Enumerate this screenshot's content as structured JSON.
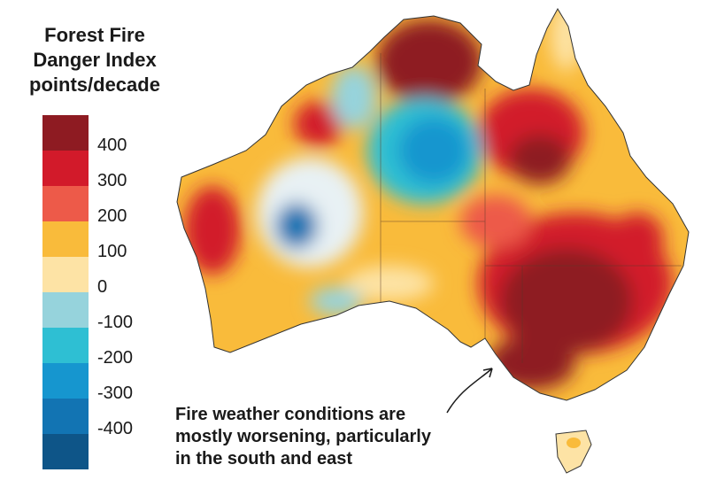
{
  "legend": {
    "title_lines": [
      "Forest Fire",
      "Danger Index",
      "points/decade"
    ],
    "bins": [
      {
        "label": "400",
        "color": "#8e1b22"
      },
      {
        "label": "300",
        "color": "#d21a2a"
      },
      {
        "label": "200",
        "color": "#ed5a49"
      },
      {
        "label": "100",
        "color": "#f9bb3b"
      },
      {
        "label": "0",
        "color": "#fde3a5"
      },
      {
        "label": "-100",
        "color": "#96d3dc"
      },
      {
        "label": "-200",
        "color": "#2ebfd3"
      },
      {
        "label": "-300",
        "color": "#1696cf"
      },
      {
        "label": "-400",
        "color": "#1274b3"
      },
      {
        "label": "",
        "color": "#0e5588"
      }
    ]
  },
  "annotation": {
    "lines": [
      "Fire weather conditions are",
      "mostly worsening, particularly",
      "in the south and east"
    ]
  },
  "map": {
    "subject": "australia",
    "regions": [
      {
        "id": "north-west-kimberley",
        "class": 400
      },
      {
        "id": "arnhem-land",
        "class": 400
      },
      {
        "id": "top-end-west",
        "class": 100
      },
      {
        "id": "central-north",
        "class": -300
      },
      {
        "id": "west-interior",
        "class": 0
      },
      {
        "id": "west-interior-core",
        "class": -300
      },
      {
        "id": "south-west",
        "class": 300
      },
      {
        "id": "queensland-north",
        "class": 100
      },
      {
        "id": "queensland-central",
        "class": 300
      },
      {
        "id": "south-east",
        "class": 400
      },
      {
        "id": "tasmania",
        "class": 0
      }
    ]
  }
}
